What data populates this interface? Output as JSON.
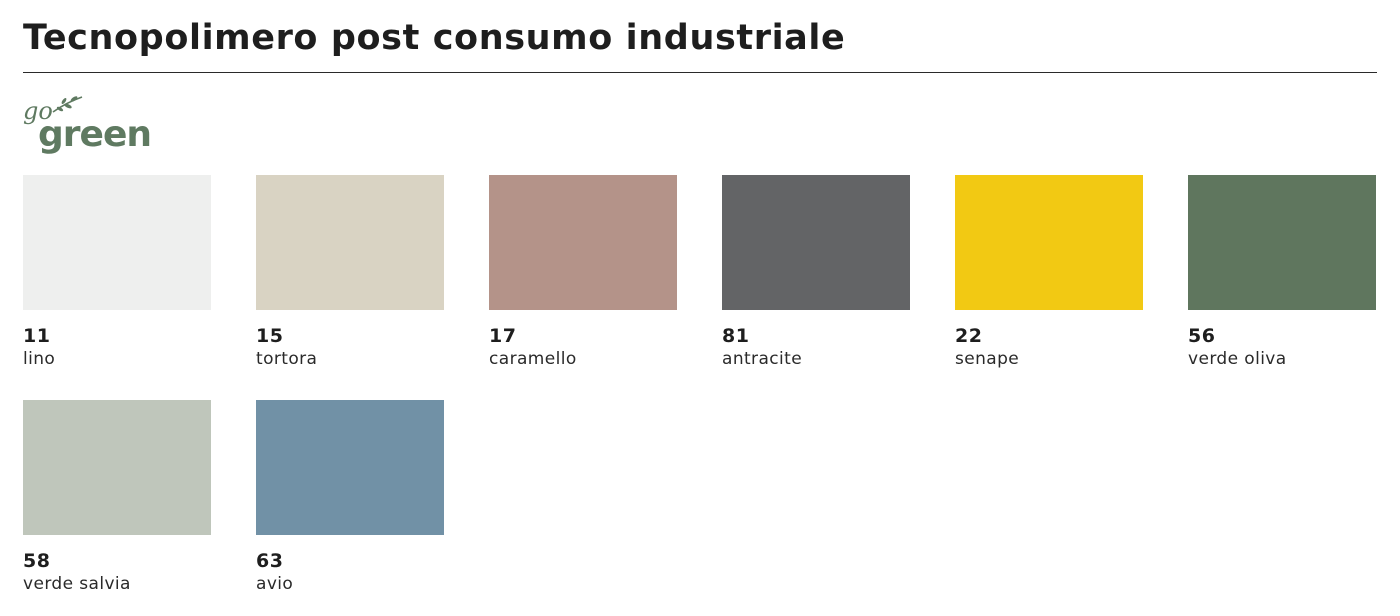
{
  "page": {
    "title": "Tecnopolimero post consumo industriale"
  },
  "logo": {
    "line1": "go",
    "line2": "green",
    "color": "#5f7a61"
  },
  "swatches": [
    {
      "code": "11",
      "name": "lino",
      "color": "#eeefee"
    },
    {
      "code": "15",
      "name": "tortora",
      "color": "#d9d3c3"
    },
    {
      "code": "17",
      "name": "caramello",
      "color": "#b49389"
    },
    {
      "code": "81",
      "name": "antracite",
      "color": "#636466"
    },
    {
      "code": "22",
      "name": "senape",
      "color": "#f2c913"
    },
    {
      "code": "56",
      "name": "verde oliva",
      "color": "#5f765e"
    },
    {
      "code": "58",
      "name": "verde salvia",
      "color": "#bfc6bb"
    },
    {
      "code": "63",
      "name": "avio",
      "color": "#7191a6"
    }
  ]
}
